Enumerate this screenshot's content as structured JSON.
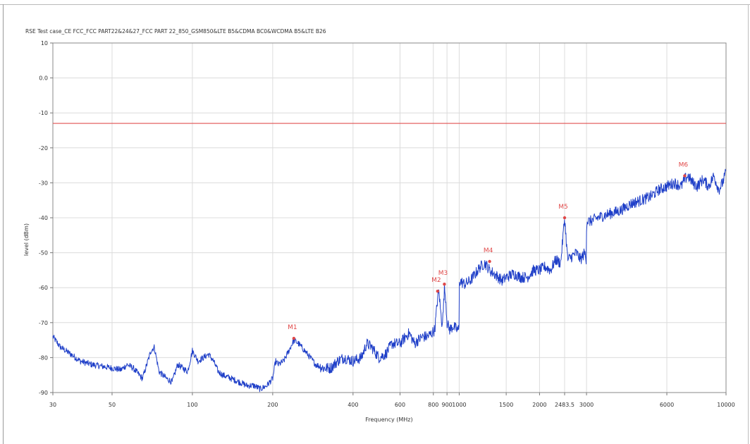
{
  "chart_data": {
    "type": "line",
    "title": "RSE Test case_CE FCC_FCC PART22&24&27_FCC PART 22_850_GSM850&LTE B5&CDMA BC0&WCDMA B5&LTE B26",
    "xlabel": "Frequency (MHz)",
    "ylabel": "level (dBm)",
    "x_scale": "log",
    "xlim": [
      30,
      10000
    ],
    "ylim": [
      -90,
      10
    ],
    "x_ticks": [
      30,
      50,
      100,
      200,
      400,
      600,
      800,
      900,
      1000,
      1500,
      2000,
      2483.5,
      3000,
      6000,
      10000
    ],
    "x_tick_labels": [
      "30",
      "50",
      "100",
      "200",
      "400",
      "600",
      "800",
      "900",
      "1000",
      "1500",
      "2000",
      "2483.5",
      "3000",
      "6000",
      "10000"
    ],
    "y_ticks": [
      10,
      0,
      -10,
      -20,
      -30,
      -40,
      -50,
      -60,
      -70,
      -80,
      -90
    ],
    "y_tick_labels": [
      "10",
      "0.0",
      "-10",
      "-20",
      "-30",
      "-40",
      "-50",
      "-60",
      "-70",
      "-80",
      "-90"
    ],
    "grid": true,
    "limit_line": {
      "y": -13,
      "color": "#e05050"
    },
    "series": [
      {
        "color": "#1f3fc8",
        "x": [
          30,
          32,
          35,
          38,
          42,
          46,
          50,
          54,
          57,
          60,
          65,
          70,
          72,
          75,
          80,
          84,
          88,
          92,
          96,
          100,
          105,
          110,
          115,
          120,
          125,
          130,
          140,
          150,
          160,
          170,
          180,
          190,
          200,
          205,
          210,
          220,
          230,
          240,
          250,
          270,
          290,
          310,
          330,
          350,
          370,
          400,
          430,
          450,
          470,
          500,
          530,
          560,
          600,
          630,
          650,
          680,
          700,
          730,
          760,
          790,
          810,
          830,
          840,
          850,
          860,
          870,
          880,
          890,
          900,
          920,
          950,
          980,
          999,
          1001,
          1050,
          1100,
          1150,
          1200,
          1250,
          1300,
          1350,
          1400,
          1450,
          1500,
          1600,
          1700,
          1800,
          1900,
          2000,
          2100,
          2200,
          2300,
          2400,
          2483.5,
          2550,
          2650,
          2750,
          2850,
          2950,
          2999,
          3001,
          3100,
          3300,
          3600,
          4000,
          4400,
          4800,
          5200,
          5600,
          6000,
          6400,
          6800,
          7000,
          7200,
          7500,
          7800,
          8200,
          8600,
          9000,
          9400,
          9700,
          10000
        ],
        "y": [
          -74,
          -77,
          -79,
          -81,
          -82,
          -82.5,
          -83,
          -83.5,
          -82,
          -83,
          -86,
          -78,
          -77,
          -84,
          -86,
          -87,
          -82,
          -83,
          -84,
          -78,
          -81,
          -80,
          -79,
          -81,
          -84,
          -85,
          -86,
          -87,
          -88,
          -88,
          -89,
          -88,
          -86,
          -81,
          -82,
          -81,
          -78,
          -75,
          -76,
          -79,
          -82,
          -83,
          -83,
          -81,
          -80,
          -81,
          -80,
          -76,
          -77,
          -80,
          -79,
          -76,
          -76,
          -74,
          -73,
          -76,
          -75,
          -74,
          -74,
          -73,
          -72,
          -63,
          -61,
          -66,
          -70,
          -68,
          -60,
          -63,
          -70,
          -72,
          -71,
          -72,
          -72,
          -58,
          -59,
          -58,
          -56,
          -54,
          -53,
          -55,
          -56,
          -57,
          -58,
          -57,
          -56,
          -57,
          -57,
          -55,
          -55,
          -54,
          -55,
          -52,
          -53,
          -40,
          -52,
          -51,
          -50,
          -52,
          -50,
          -52,
          -41,
          -41,
          -40,
          -39,
          -38,
          -36,
          -35,
          -34,
          -32,
          -31,
          -30,
          -31,
          -29,
          -28,
          -30,
          -31,
          -29,
          -31,
          -28,
          -32,
          -30,
          -27
        ]
      }
    ],
    "markers": [
      {
        "label": "M1",
        "x": 240,
        "y": -74.5
      },
      {
        "label": "M2",
        "x": 830,
        "y": -61
      },
      {
        "label": "M3",
        "x": 880,
        "y": -59
      },
      {
        "label": "M4",
        "x": 1300,
        "y": -52.5
      },
      {
        "label": "M5",
        "x": 2483.5,
        "y": -40
      },
      {
        "label": "M6",
        "x": 7000,
        "y": -28
      }
    ]
  }
}
